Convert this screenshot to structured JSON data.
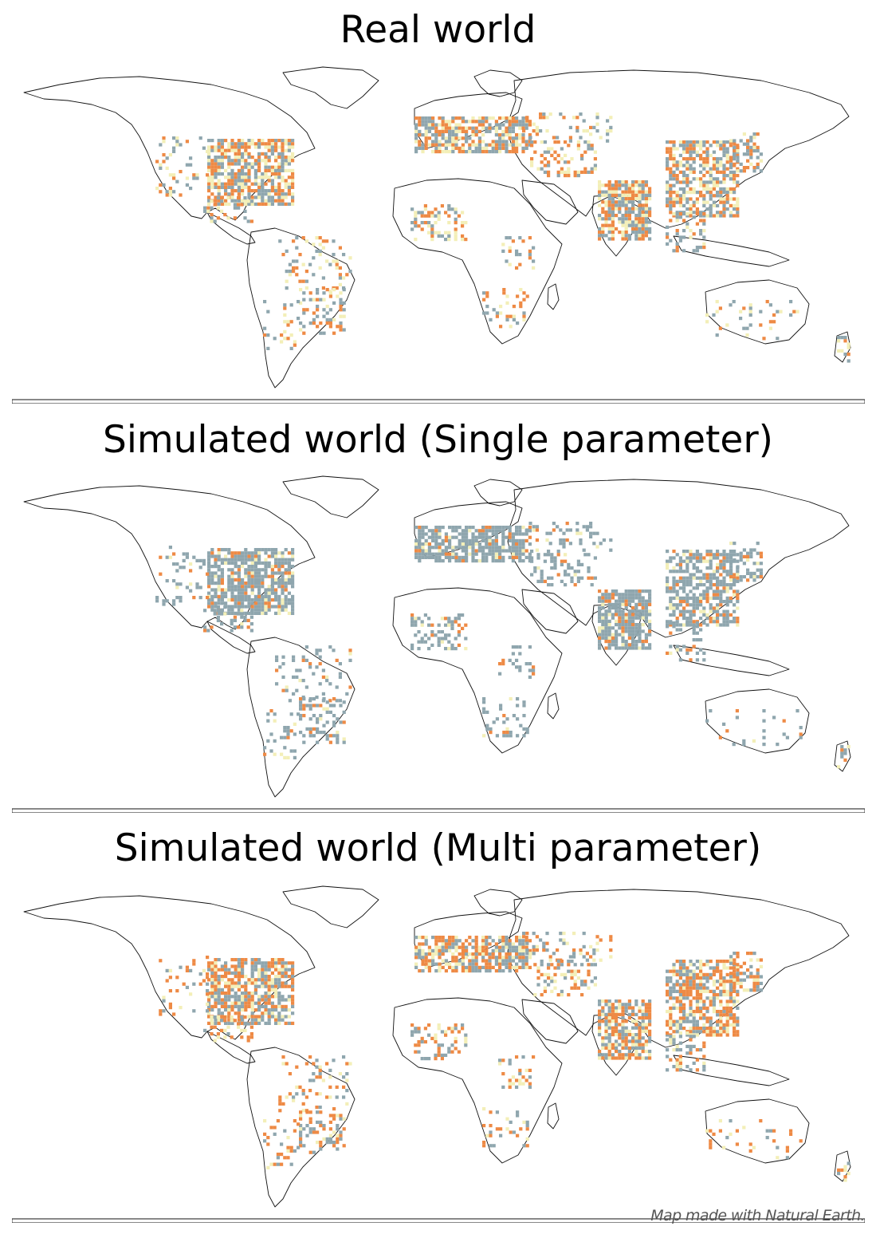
{
  "panels": [
    {
      "title": "Real world"
    },
    {
      "title": "Simulated world (Single parameter)"
    },
    {
      "title": "Simulated world (Multi parameter)"
    }
  ],
  "attribution": "Map made with Natural Earth.",
  "colors": {
    "blue_gray": "#8fa6ae",
    "orange": "#ee8a45",
    "light_yellow": "#f3efb8",
    "coastline": "#111111",
    "background": "#ffffff"
  }
}
